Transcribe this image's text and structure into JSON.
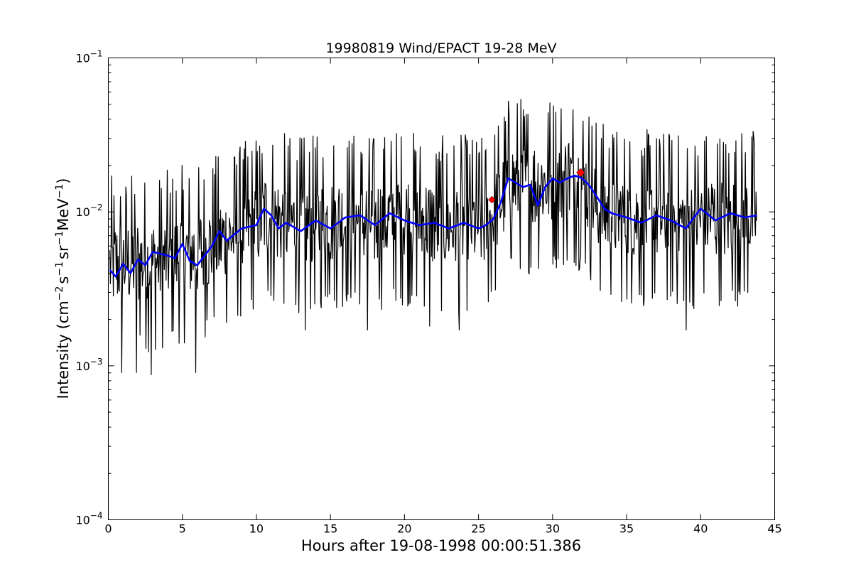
{
  "chart_data": {
    "type": "line",
    "title": "19980819 Wind/EPACT 19-28 MeV",
    "xlabel": "Hours after 19-08-1998 00:00:51.386",
    "ylabel_parts": {
      "prefix": "Intensity (cm",
      "exp1": "−2",
      "s": "s",
      "exp2": "−1",
      "sr": "sr",
      "exp3": "−1",
      "mev": "MeV",
      "exp4": "−1",
      "suffix": ")"
    },
    "xlim": [
      0,
      45
    ],
    "ylim": [
      0.0001,
      0.1
    ],
    "yscale": "log",
    "grid": false,
    "x_ticks": [
      0,
      5,
      10,
      15,
      20,
      25,
      30,
      35,
      40,
      45
    ],
    "x_tick_labels": [
      "0",
      "5",
      "10",
      "15",
      "20",
      "25",
      "30",
      "35",
      "40",
      "45"
    ],
    "y_ticks": [
      0.0001,
      0.001,
      0.01,
      0.1
    ],
    "y_tick_labels": [
      {
        "base": "10",
        "exp": "−4"
      },
      {
        "base": "10",
        "exp": "−3"
      },
      {
        "base": "10",
        "exp": "−2"
      },
      {
        "base": "10",
        "exp": "−1"
      }
    ],
    "series": [
      {
        "style": "raw intensity",
        "color": "#000000",
        "x": [
          0.1,
          1.6,
          3.1,
          4.6,
          6.1,
          7.6,
          9.1,
          10.6,
          12.1,
          13.6,
          15.1,
          16.6,
          18.1,
          19.6,
          21.1,
          22.6,
          24.1,
          25.6,
          26.3,
          27.1,
          28.6,
          30.1,
          31.6,
          32.3,
          33.1,
          34.6,
          36.1,
          37.6,
          39.1,
          40.6,
          42.1,
          43.8
        ],
        "y": [
          0.0045,
          0.0048,
          0.0046,
          0.0052,
          0.0055,
          0.0065,
          0.0075,
          0.0095,
          0.0085,
          0.0082,
          0.0088,
          0.009,
          0.0085,
          0.0095,
          0.0088,
          0.0082,
          0.0085,
          0.0082,
          0.011,
          0.0155,
          0.015,
          0.016,
          0.0165,
          0.0145,
          0.0105,
          0.0095,
          0.009,
          0.0092,
          0.0085,
          0.0095,
          0.0092,
          0.0095
        ],
        "spikes": [
          {
            "x": 0.9,
            "y": 0.0009
          },
          {
            "x": 1.9,
            "y": 0.0009
          },
          {
            "x": 2.9,
            "y": 0.00087
          },
          {
            "x": 5.9,
            "y": 0.0009
          },
          {
            "x": 13.3,
            "y": 0.0017
          },
          {
            "x": 17.5,
            "y": 0.0017
          },
          {
            "x": 21.7,
            "y": 0.0018
          },
          {
            "x": 23.7,
            "y": 0.0017
          },
          {
            "x": 31.1,
            "y": 0.028
          },
          {
            "x": 39.0,
            "y": 0.0017
          }
        ]
      },
      {
        "style": "smoothed",
        "color": "#0000ff",
        "x": [
          0.1,
          0.5,
          1.0,
          1.5,
          2.0,
          2.5,
          3.0,
          4.0,
          4.5,
          5.0,
          5.5,
          6.0,
          7.0,
          7.5,
          8.0,
          9.0,
          10.0,
          10.5,
          11.0,
          11.5,
          12.0,
          13.0,
          14.0,
          15.0,
          16.0,
          17.0,
          18.0,
          19.0,
          20.0,
          21.0,
          22.0,
          23.0,
          24.0,
          25.0,
          25.5,
          26.0,
          26.5,
          27.0,
          27.5,
          28.0,
          28.5,
          29.0,
          29.5,
          30.0,
          30.5,
          31.0,
          31.5,
          32.0,
          32.5,
          33.0,
          33.5,
          34.0,
          35.0,
          36.0,
          37.0,
          38.0,
          39.0,
          40.0,
          41.0,
          42.0,
          43.0,
          43.8
        ],
        "y": [
          0.0042,
          0.0038,
          0.0046,
          0.004,
          0.0049,
          0.0045,
          0.0055,
          0.0052,
          0.005,
          0.0062,
          0.0048,
          0.0045,
          0.006,
          0.0075,
          0.0065,
          0.0078,
          0.0082,
          0.0105,
          0.0095,
          0.0078,
          0.0085,
          0.0075,
          0.0088,
          0.0078,
          0.0092,
          0.0095,
          0.0082,
          0.0098,
          0.0088,
          0.0082,
          0.0085,
          0.0078,
          0.0085,
          0.0078,
          0.0082,
          0.009,
          0.0115,
          0.0165,
          0.0155,
          0.0145,
          0.015,
          0.011,
          0.0145,
          0.0165,
          0.0155,
          0.0165,
          0.0172,
          0.0165,
          0.0148,
          0.0125,
          0.0105,
          0.0098,
          0.0092,
          0.0085,
          0.0095,
          0.0088,
          0.0078,
          0.0105,
          0.0088,
          0.0098,
          0.0092,
          0.0095
        ]
      }
    ],
    "markers": {
      "color": "#ff0000",
      "shape": "diamond",
      "points": [
        {
          "x": 25.9,
          "y": 0.012
        },
        {
          "x": 31.9,
          "y": 0.018
        }
      ]
    }
  }
}
